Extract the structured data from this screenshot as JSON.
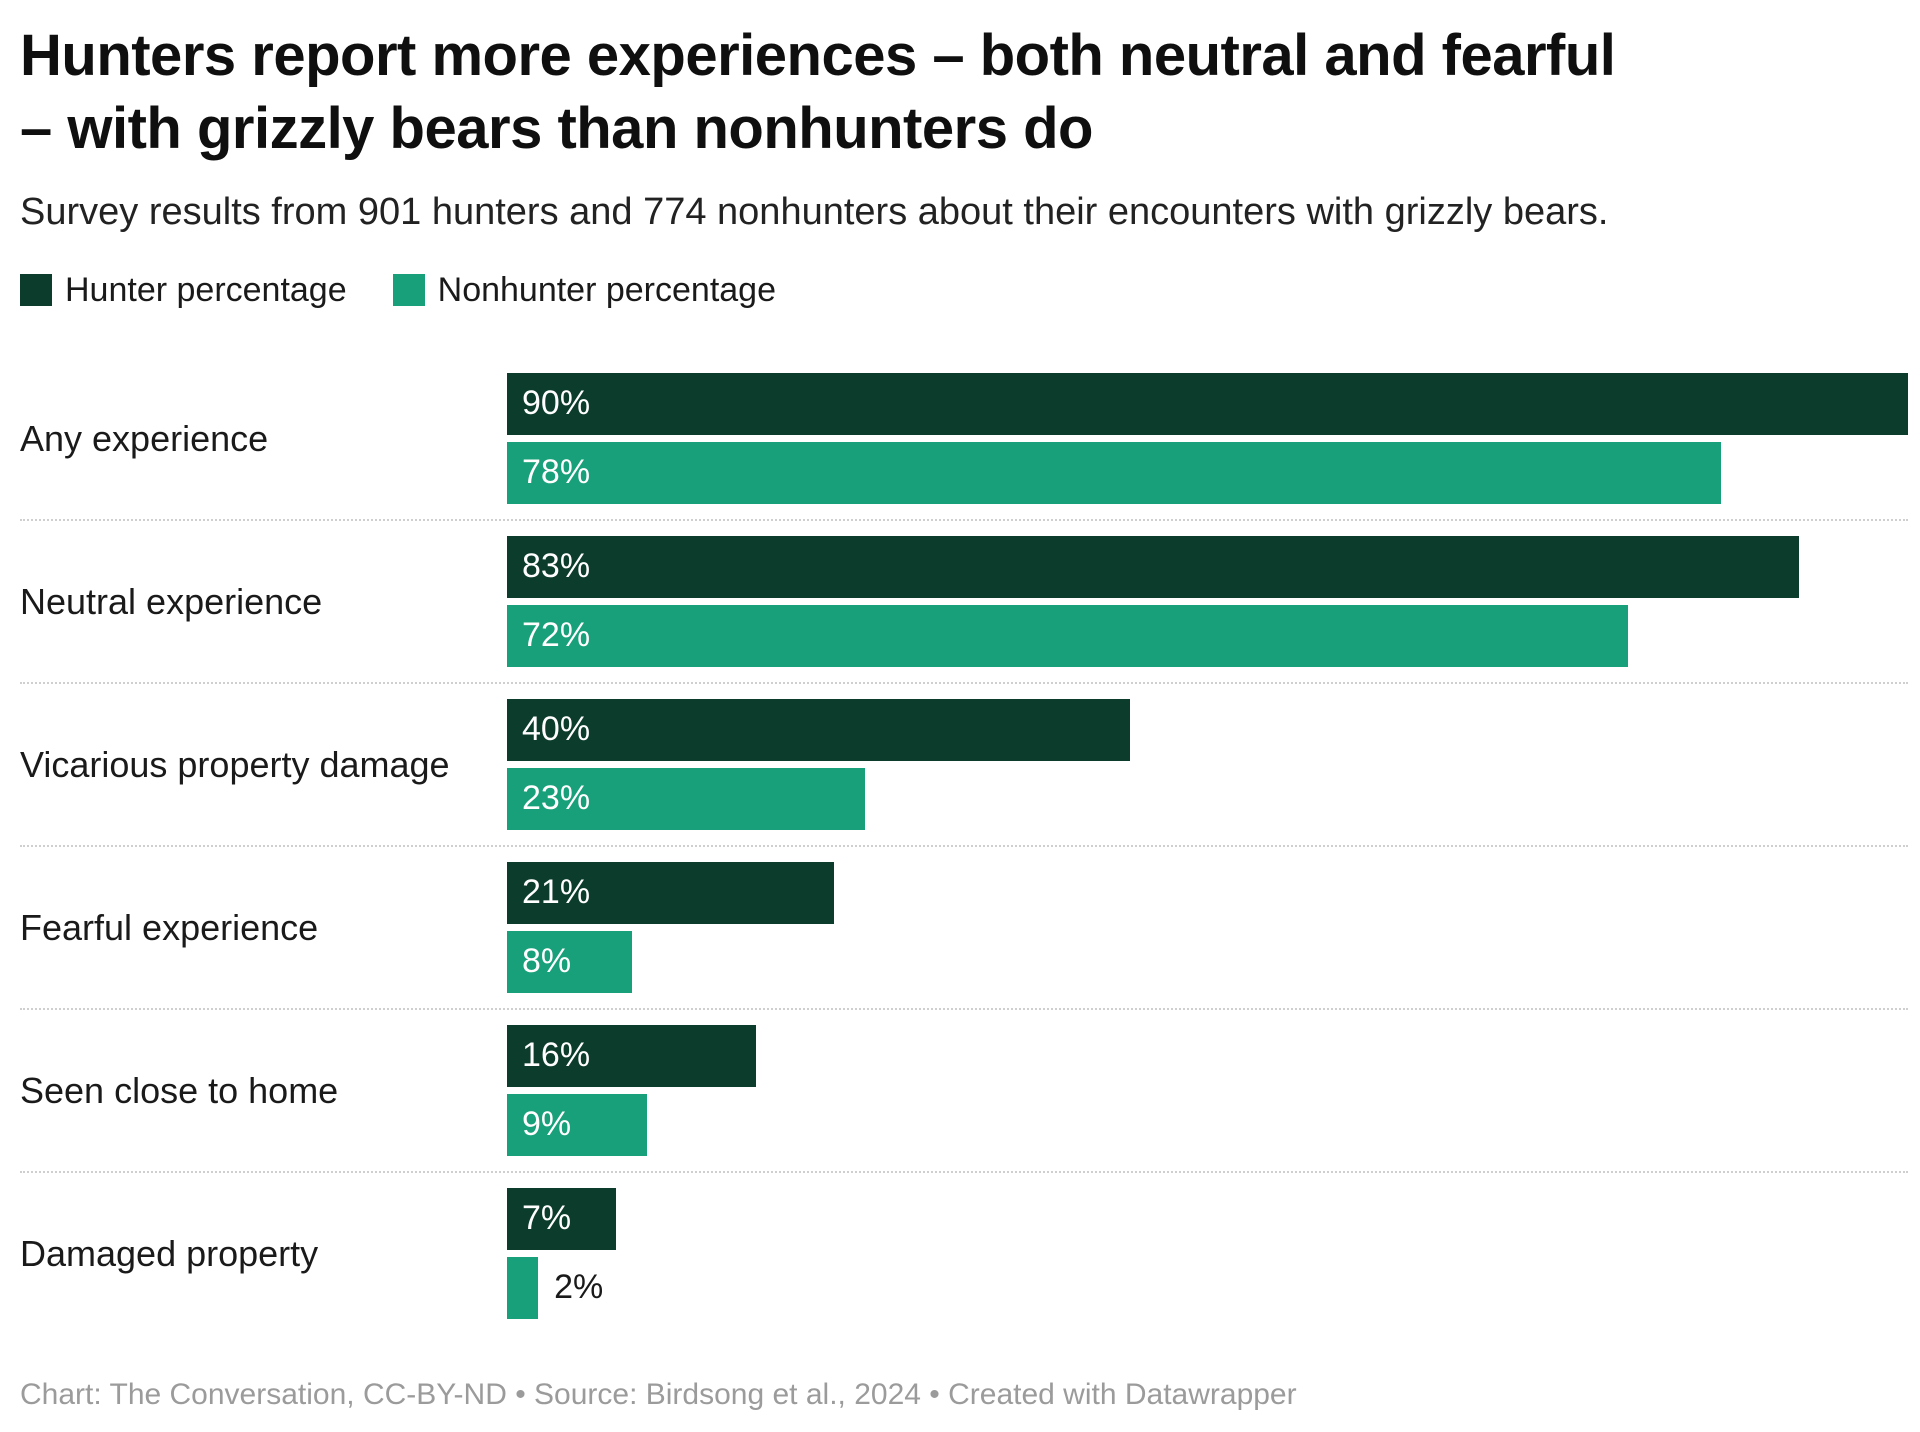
{
  "header": {
    "title_line1": "Hunters report more experiences – both neutral and fearful",
    "title_line2": "– with grizzly bears than nonhunters do",
    "subtitle": "Survey results from 901 hunters and 774 nonhunters about their encounters with grizzly bears."
  },
  "legend": {
    "items": [
      {
        "label": "Hunter percentage",
        "color": "#0c3c2b"
      },
      {
        "label": "Nonhunter percentage",
        "color": "#18a07a"
      }
    ]
  },
  "footer": "Chart: The Conversation, CC-BY-ND • Source: Birdsong et al., 2024 • Created with Datawrapper",
  "chart_data": {
    "type": "bar",
    "orientation": "horizontal",
    "title": "Hunters report more experiences – both neutral and fearful – with grizzly bears than nonhunters do",
    "subtitle": "Survey results from 901 hunters and 774 nonhunters about their encounters with grizzly bears.",
    "categories": [
      "Any experience",
      "Neutral experience",
      "Vicarious property damage",
      "Fearful experience",
      "Seen close to home",
      "Damaged property"
    ],
    "series": [
      {
        "name": "Hunter percentage",
        "color": "#0c3c2b",
        "values": [
          90,
          83,
          40,
          21,
          16,
          7
        ],
        "labels": [
          "90%",
          "83%",
          "40%",
          "21%",
          "16%",
          "7%"
        ]
      },
      {
        "name": "Nonhunter percentage",
        "color": "#18a07a",
        "values": [
          78,
          72,
          23,
          8,
          9,
          2
        ],
        "labels": [
          "78%",
          "72%",
          "23%",
          "8%",
          "9%",
          "2%"
        ]
      }
    ],
    "value_suffix": "%",
    "xmax": 90,
    "grid": "off",
    "legend_position": "top",
    "separators": "dotted"
  }
}
